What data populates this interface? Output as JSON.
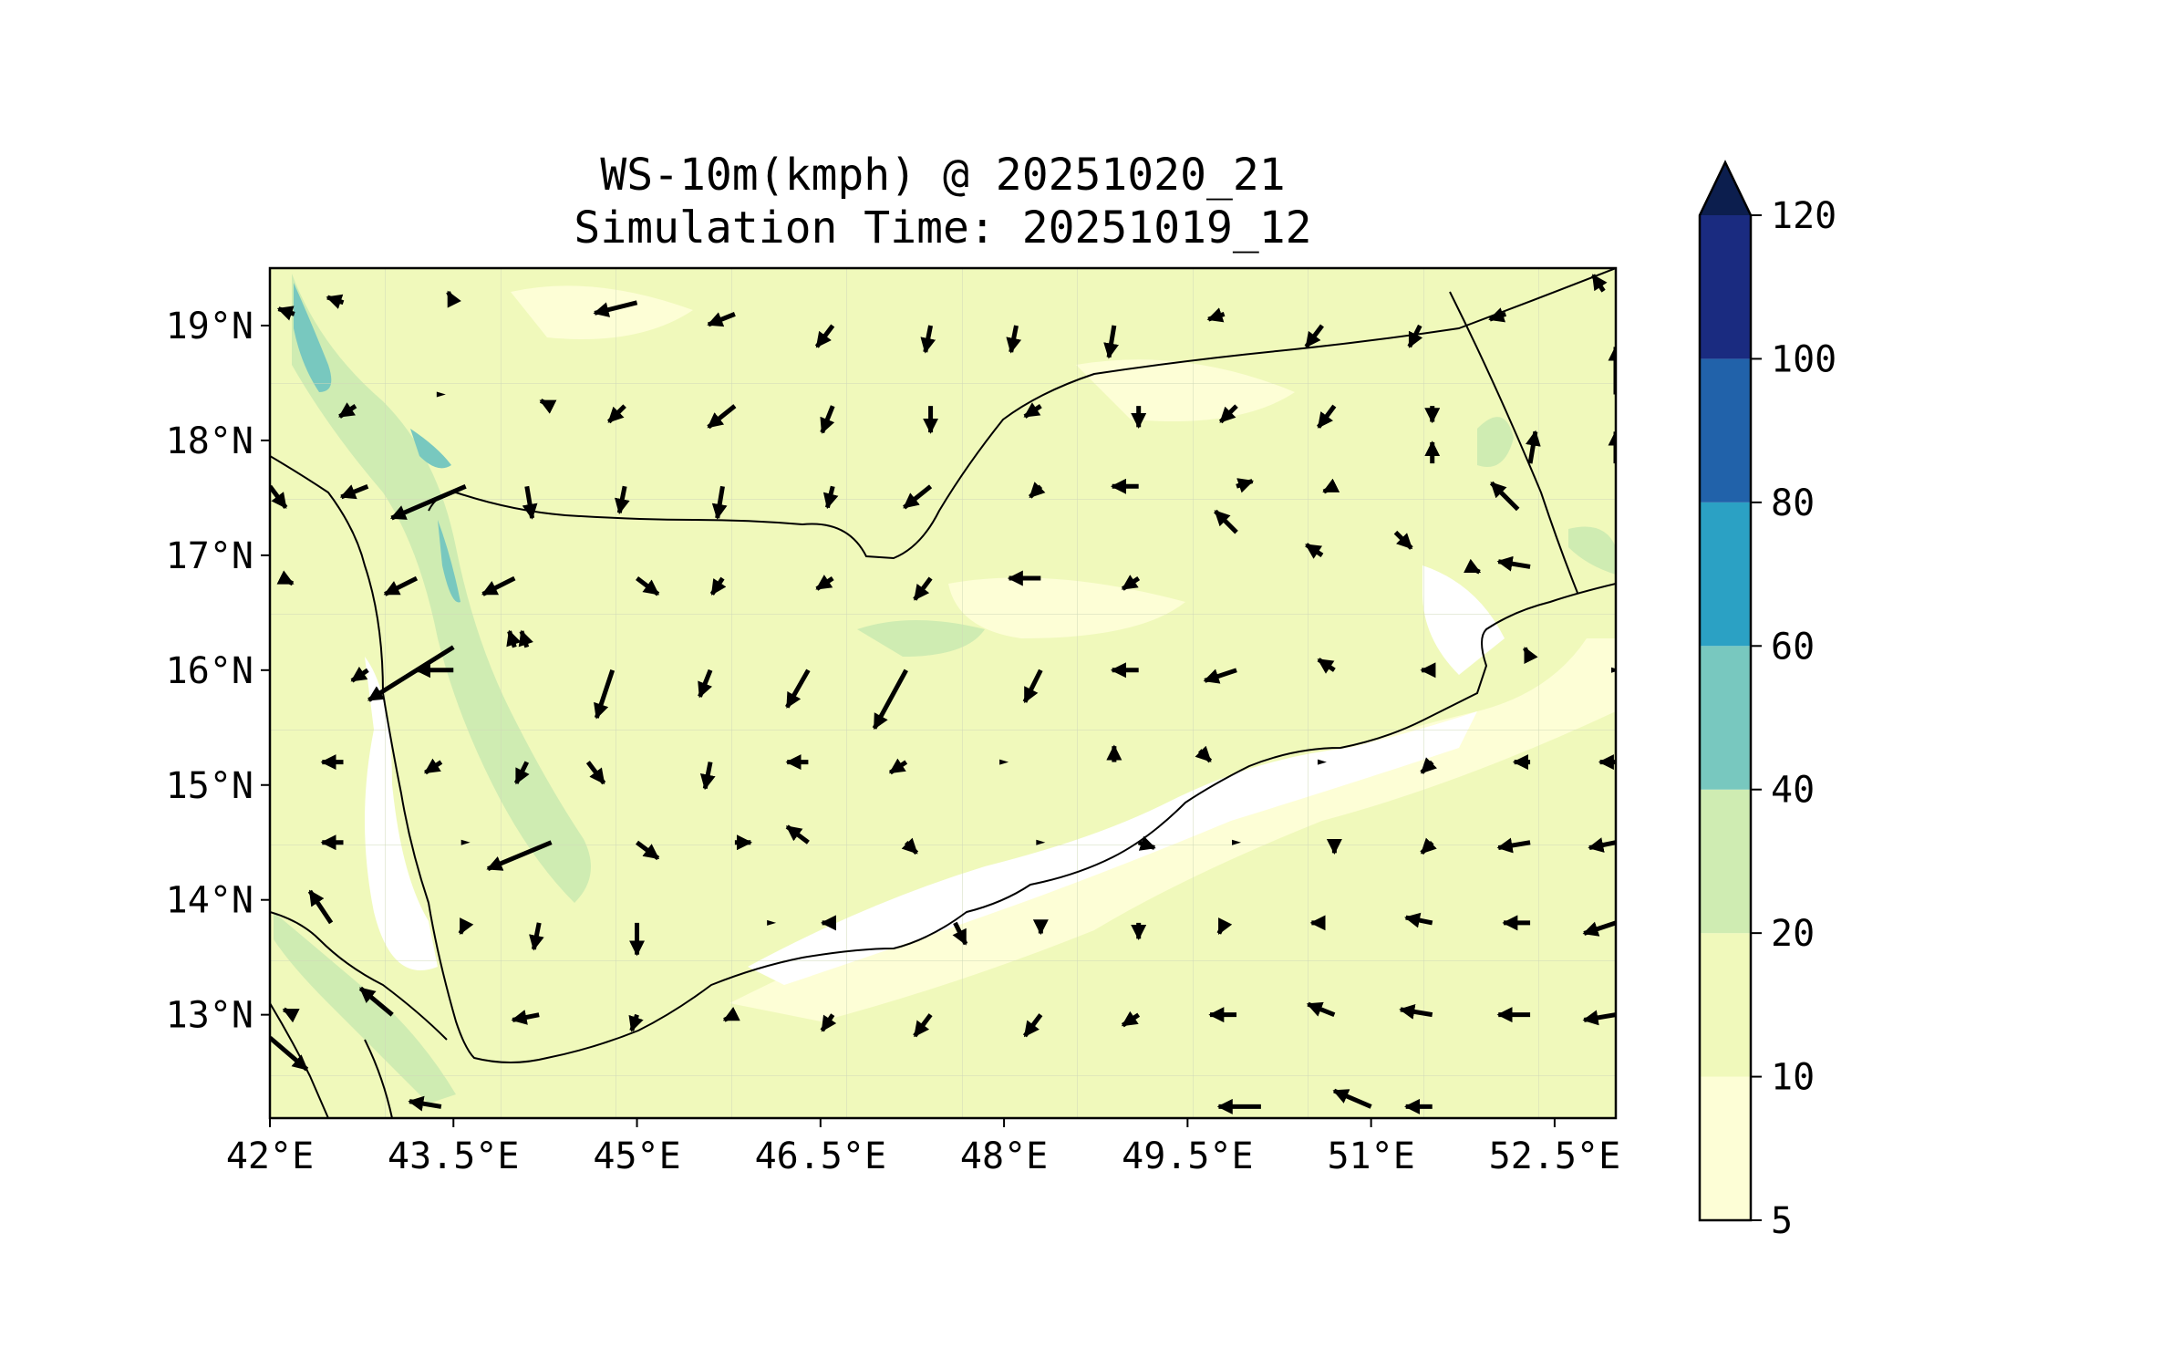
{
  "title": {
    "line1": "WS-10m(kmph) @ 20251020_21",
    "line2": "Simulation Time: 20251019_12"
  },
  "chart_data": {
    "type": "heatmap",
    "variable": "WS-10m(kmph)",
    "valid_time": "20251020_21",
    "simulation_time": "20251019_12",
    "lon_range": [
      42.0,
      53.0
    ],
    "lat_range": [
      12.1,
      19.5
    ],
    "x_ticks": [
      "42°E",
      "43.5°E",
      "45°E",
      "46.5°E",
      "48°E",
      "49.5°E",
      "51°E",
      "52.5°E"
    ],
    "x_tick_values": [
      42.0,
      43.5,
      45.0,
      46.5,
      48.0,
      49.5,
      51.0,
      52.5
    ],
    "y_ticks": [
      "13°N",
      "14°N",
      "15°N",
      "16°N",
      "17°N",
      "18°N",
      "19°N"
    ],
    "y_tick_values": [
      13,
      14,
      15,
      16,
      17,
      18,
      19
    ],
    "colorbar": {
      "levels": [
        "5",
        "10",
        "20",
        "40",
        "60",
        "80",
        "100",
        "120"
      ],
      "colors": [
        "#fdfed6",
        "#f0f9bb",
        "#cfecb2",
        "#78c8bf",
        "#2ba1c4",
        "#2162aa",
        "#1a2b80"
      ],
      "extend_color": "#0c1e4e",
      "extend": "max"
    },
    "colors": {
      "calm": "#ffffff",
      "low": "#fdfed6",
      "moderate": "#f0f9bb",
      "fresh": "#cfecb2",
      "strong": "#78c8bf",
      "coast": "#000000",
      "border": "#000000",
      "vector": "#000000"
    },
    "vectors": [
      [
        42.2,
        19.1,
        -0.3,
        0.1
      ],
      [
        42.6,
        19.2,
        -0.3,
        0.1
      ],
      [
        43.5,
        19.2,
        -0.1,
        0.2
      ],
      [
        45.0,
        19.2,
        -0.8,
        -0.2
      ],
      [
        45.8,
        19.1,
        -0.5,
        -0.2
      ],
      [
        46.6,
        19.0,
        -0.3,
        -0.4
      ],
      [
        47.4,
        19.0,
        -0.1,
        -0.5
      ],
      [
        48.1,
        19.0,
        -0.1,
        -0.5
      ],
      [
        48.9,
        19.0,
        -0.1,
        -0.6
      ],
      [
        49.8,
        19.1,
        -0.3,
        -0.1
      ],
      [
        50.6,
        19.0,
        -0.3,
        -0.4
      ],
      [
        51.4,
        19.0,
        -0.2,
        -0.4
      ],
      [
        52.1,
        19.1,
        -0.3,
        -0.1
      ],
      [
        52.9,
        19.3,
        -0.2,
        0.3
      ],
      [
        42.7,
        18.3,
        -0.3,
        -0.2
      ],
      [
        43.4,
        18.4,
        -0.1,
        0.0
      ],
      [
        44.3,
        18.3,
        -0.2,
        0.1
      ],
      [
        44.9,
        18.3,
        -0.3,
        -0.3
      ],
      [
        45.8,
        18.3,
        -0.5,
        -0.4
      ],
      [
        46.6,
        18.3,
        -0.2,
        -0.5
      ],
      [
        47.4,
        18.3,
        0.0,
        -0.5
      ],
      [
        48.3,
        18.3,
        -0.3,
        -0.2
      ],
      [
        49.1,
        18.3,
        0.0,
        -0.4
      ],
      [
        49.9,
        18.3,
        -0.3,
        -0.3
      ],
      [
        50.7,
        18.3,
        -0.3,
        -0.4
      ],
      [
        51.5,
        18.3,
        0.0,
        -0.3
      ],
      [
        51.5,
        17.8,
        0.0,
        0.4
      ],
      [
        52.3,
        17.8,
        0.1,
        0.6
      ],
      [
        53.0,
        17.8,
        0.0,
        0.6
      ],
      [
        53.0,
        18.4,
        0.0,
        0.9
      ],
      [
        42.0,
        17.6,
        0.3,
        -0.4
      ],
      [
        42.8,
        17.6,
        -0.5,
        -0.2
      ],
      [
        43.6,
        17.6,
        -1.4,
        -0.6
      ],
      [
        44.1,
        17.6,
        0.1,
        -0.6
      ],
      [
        44.9,
        17.6,
        -0.1,
        -0.5
      ],
      [
        45.7,
        17.6,
        -0.1,
        -0.6
      ],
      [
        46.6,
        17.6,
        -0.1,
        -0.4
      ],
      [
        47.4,
        17.6,
        -0.5,
        -0.4
      ],
      [
        48.3,
        17.6,
        -0.2,
        -0.2
      ],
      [
        49.1,
        17.6,
        -0.5,
        0.0
      ],
      [
        49.9,
        17.6,
        0.3,
        0.1
      ],
      [
        50.7,
        17.6,
        -0.2,
        -0.1
      ],
      [
        51.2,
        17.2,
        0.3,
        -0.3
      ],
      [
        51.8,
        16.9,
        0.2,
        -0.1
      ],
      [
        52.2,
        17.4,
        -0.5,
        0.5
      ],
      [
        52.3,
        16.9,
        -0.6,
        0.1
      ],
      [
        42.1,
        16.8,
        0.2,
        -0.1
      ],
      [
        43.2,
        16.8,
        -0.6,
        -0.3
      ],
      [
        44.0,
        16.8,
        -0.6,
        -0.3
      ],
      [
        43.5,
        16.2,
        -1.6,
        -1.0
      ],
      [
        44.0,
        16.2,
        -0.1,
        0.3
      ],
      [
        45.0,
        16.8,
        0.4,
        -0.3
      ],
      [
        45.7,
        16.8,
        -0.2,
        -0.3
      ],
      [
        46.6,
        16.8,
        -0.3,
        -0.2
      ],
      [
        47.4,
        16.8,
        -0.3,
        -0.4
      ],
      [
        48.3,
        16.8,
        -0.6,
        0.0
      ],
      [
        49.1,
        16.8,
        -0.3,
        -0.2
      ],
      [
        49.9,
        17.2,
        -0.4,
        0.4
      ],
      [
        50.6,
        17.0,
        -0.3,
        0.2
      ],
      [
        42.8,
        16.0,
        -0.3,
        -0.2
      ],
      [
        43.5,
        16.0,
        -0.7,
        0.0
      ],
      [
        44.1,
        16.2,
        -0.1,
        0.3
      ],
      [
        44.8,
        16.0,
        -0.3,
        -0.9
      ],
      [
        45.6,
        16.0,
        -0.2,
        -0.5
      ],
      [
        46.4,
        16.0,
        -0.4,
        -0.7
      ],
      [
        47.2,
        16.0,
        -0.6,
        -1.1
      ],
      [
        48.3,
        16.0,
        -0.3,
        -0.6
      ],
      [
        49.1,
        16.0,
        -0.5,
        0.0
      ],
      [
        49.9,
        16.0,
        -0.6,
        -0.2
      ],
      [
        50.7,
        16.0,
        -0.3,
        0.2
      ],
      [
        51.5,
        16.0,
        -0.2,
        0.0
      ],
      [
        52.3,
        16.1,
        -0.1,
        0.2
      ],
      [
        53.0,
        16.0,
        -0.1,
        0.0
      ],
      [
        42.6,
        15.2,
        -0.4,
        0.0
      ],
      [
        43.4,
        15.2,
        -0.3,
        -0.2
      ],
      [
        44.1,
        15.2,
        -0.2,
        -0.4
      ],
      [
        44.6,
        15.2,
        0.3,
        -0.4
      ],
      [
        45.6,
        15.2,
        -0.1,
        -0.5
      ],
      [
        46.4,
        15.2,
        -0.4,
        0.0
      ],
      [
        47.2,
        15.2,
        -0.3,
        -0.2
      ],
      [
        48.0,
        15.2,
        0.0,
        0.0
      ],
      [
        48.9,
        15.2,
        0.0,
        0.3
      ],
      [
        49.6,
        15.3,
        0.2,
        -0.2
      ],
      [
        50.6,
        15.2,
        0.1,
        0.0
      ],
      [
        51.5,
        15.2,
        -0.2,
        -0.2
      ],
      [
        52.3,
        15.2,
        -0.3,
        0.0
      ],
      [
        53.0,
        15.2,
        -0.3,
        0.0
      ],
      [
        42.6,
        14.5,
        -0.4,
        0.0
      ],
      [
        43.6,
        14.5,
        -0.1,
        0.0
      ],
      [
        44.3,
        14.5,
        -1.2,
        -0.5
      ],
      [
        45.0,
        14.5,
        0.4,
        -0.3
      ],
      [
        45.8,
        14.5,
        0.3,
        0.0
      ],
      [
        46.4,
        14.5,
        -0.4,
        0.3
      ],
      [
        47.2,
        14.5,
        0.2,
        -0.2
      ],
      [
        48.3,
        14.5,
        0.0,
        0.0
      ],
      [
        49.1,
        14.5,
        0.3,
        -0.1
      ],
      [
        49.9,
        14.5,
        0.0,
        0.0
      ],
      [
        50.7,
        14.5,
        0.0,
        -0.2
      ],
      [
        51.5,
        14.5,
        -0.2,
        -0.2
      ],
      [
        52.3,
        14.5,
        -0.6,
        -0.1
      ],
      [
        53.0,
        14.5,
        -0.5,
        -0.1
      ],
      [
        42.5,
        13.8,
        -0.4,
        0.6
      ],
      [
        43.6,
        13.8,
        -0.1,
        -0.2
      ],
      [
        44.2,
        13.8,
        -0.1,
        -0.5
      ],
      [
        45.0,
        13.8,
        0.0,
        -0.6
      ],
      [
        46.1,
        13.8,
        -0.1,
        0.0
      ],
      [
        46.6,
        13.8,
        -0.2,
        0.0
      ],
      [
        47.6,
        13.8,
        0.2,
        -0.4
      ],
      [
        48.3,
        13.8,
        0.0,
        -0.2
      ],
      [
        49.1,
        13.8,
        0.0,
        -0.3
      ],
      [
        49.8,
        13.8,
        -0.1,
        -0.2
      ],
      [
        50.6,
        13.8,
        -0.2,
        0.0
      ],
      [
        51.5,
        13.8,
        -0.5,
        0.1
      ],
      [
        52.3,
        13.8,
        -0.5,
        0.0
      ],
      [
        53.0,
        13.8,
        -0.6,
        -0.2
      ],
      [
        42.2,
        13.0,
        -0.2,
        0.1
      ],
      [
        43.0,
        13.0,
        -0.6,
        0.5
      ],
      [
        44.2,
        13.0,
        -0.5,
        -0.1
      ],
      [
        45.0,
        13.0,
        -0.1,
        -0.3
      ],
      [
        45.8,
        13.0,
        -0.2,
        -0.1
      ],
      [
        46.6,
        13.0,
        -0.2,
        -0.3
      ],
      [
        47.4,
        13.0,
        -0.3,
        -0.4
      ],
      [
        48.3,
        13.0,
        -0.3,
        -0.4
      ],
      [
        49.1,
        13.0,
        -0.3,
        -0.2
      ],
      [
        49.9,
        13.0,
        -0.5,
        0.0
      ],
      [
        50.7,
        13.0,
        -0.5,
        0.2
      ],
      [
        51.5,
        13.0,
        -0.6,
        0.1
      ],
      [
        52.3,
        13.0,
        -0.6,
        0.0
      ],
      [
        53.0,
        13.0,
        -0.6,
        -0.1
      ],
      [
        42.0,
        12.8,
        0.7,
        -0.6
      ],
      [
        43.4,
        12.2,
        -0.6,
        0.1
      ],
      [
        50.1,
        12.2,
        -0.8,
        0.0
      ],
      [
        51.0,
        12.2,
        -0.7,
        0.3
      ],
      [
        51.5,
        12.2,
        -0.5,
        0.0
      ]
    ]
  }
}
